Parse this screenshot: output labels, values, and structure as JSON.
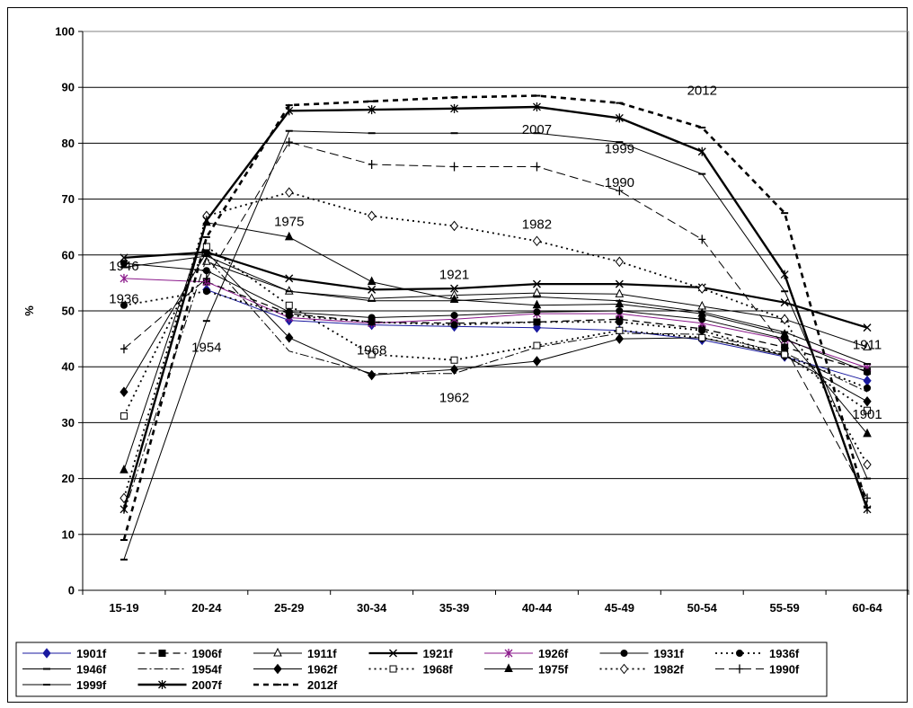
{
  "chart_data": {
    "type": "line",
    "ylabel": "%",
    "xlabel": "",
    "ylim": [
      0,
      100
    ],
    "yticks": [
      0,
      10,
      20,
      30,
      40,
      50,
      60,
      70,
      80,
      90,
      100
    ],
    "categories": [
      "15-19",
      "20-24",
      "25-29",
      "30-34",
      "35-39",
      "40-44",
      "45-49",
      "50-54",
      "55-59",
      "60-64"
    ],
    "grid": "horizontal",
    "legend_position": "bottom",
    "series": [
      {
        "name": "1901f",
        "color": "#1a1aa0",
        "dash": "",
        "width": 1,
        "marker": "diamond",
        "fill": "#1a1aa0",
        "values": [
          null,
          53.8,
          48.3,
          47.5,
          47.2,
          47.0,
          46.5,
          44.8,
          41.8,
          37.5
        ]
      },
      {
        "name": "1906f",
        "color": "#000000",
        "dash": "8 5",
        "width": 1.3,
        "marker": "square",
        "fill": "#000000",
        "values": [
          null,
          55.2,
          49.5,
          48.0,
          47.8,
          48.0,
          48.5,
          46.8,
          43.5,
          39.2
        ]
      },
      {
        "name": "1911f",
        "color": "#000000",
        "dash": "",
        "width": 1,
        "marker": "triangle",
        "fill": "#ffffff",
        "values": [
          null,
          58.8,
          53.5,
          52.2,
          52.8,
          53.2,
          53.0,
          50.8,
          48.5,
          43.5
        ]
      },
      {
        "name": "1921f",
        "color": "#000000",
        "dash": "",
        "width": 2.2,
        "marker": "x",
        "fill": "none",
        "values": [
          59.5,
          60.5,
          55.8,
          53.8,
          54.0,
          54.8,
          54.8,
          54.2,
          51.5,
          47.0
        ]
      },
      {
        "name": "1926f",
        "color": "#8b1a8b",
        "dash": "",
        "width": 1,
        "marker": "star",
        "fill": "none",
        "values": [
          55.8,
          55.2,
          48.8,
          47.8,
          48.5,
          49.5,
          49.5,
          47.8,
          44.8,
          39.8
        ]
      },
      {
        "name": "1931f",
        "color": "#000000",
        "dash": "",
        "width": 1,
        "marker": "circle",
        "fill": "#000000",
        "values": [
          58.5,
          57.2,
          49.8,
          48.8,
          49.2,
          49.8,
          50.0,
          48.5,
          45.0,
          39.0
        ]
      },
      {
        "name": "1936f",
        "color": "#000000",
        "dash": "2 4",
        "width": 1.8,
        "marker": "circle",
        "fill": "#000000",
        "values": [
          51.0,
          53.5,
          49.2,
          48.0,
          47.5,
          48.0,
          48.0,
          46.5,
          42.0,
          36.2
        ]
      },
      {
        "name": "1946f",
        "color": "#000000",
        "dash": "",
        "width": 1,
        "marker": "dash",
        "fill": "none",
        "values": [
          57.8,
          59.8,
          53.5,
          51.8,
          51.8,
          52.5,
          51.8,
          49.8,
          46.2,
          40.5
        ]
      },
      {
        "name": "1954f",
        "color": "#000000",
        "dash": "10 3 2 3",
        "width": 1,
        "marker": "none",
        "fill": "none",
        "values": [
          13.8,
          59.5,
          42.8,
          38.8,
          38.8,
          43.5,
          46.0,
          45.8,
          42.5,
          35.5
        ]
      },
      {
        "name": "1962f",
        "color": "#000000",
        "dash": "",
        "width": 1,
        "marker": "diamond",
        "fill": "#000000",
        "values": [
          35.5,
          60.5,
          45.2,
          38.5,
          39.5,
          41.0,
          45.0,
          45.2,
          42.0,
          33.8
        ]
      },
      {
        "name": "1968f",
        "color": "#000000",
        "dash": "2 4",
        "width": 1.8,
        "marker": "square",
        "fill": "#ffffff",
        "values": [
          31.2,
          61.5,
          51.0,
          42.2,
          41.2,
          43.8,
          46.5,
          45.2,
          42.2,
          32.2
        ]
      },
      {
        "name": "1975f",
        "color": "#000000",
        "dash": "",
        "width": 1,
        "marker": "triangle",
        "fill": "#000000",
        "values": [
          21.5,
          65.8,
          63.2,
          55.2,
          52.0,
          51.0,
          51.2,
          49.5,
          45.8,
          28.0
        ]
      },
      {
        "name": "1982f",
        "color": "#000000",
        "dash": "2 4",
        "width": 1.8,
        "marker": "diamond",
        "fill": "#ffffff",
        "values": [
          16.5,
          67.0,
          71.2,
          67.0,
          65.2,
          62.5,
          58.8,
          54.0,
          48.5,
          22.5
        ]
      },
      {
        "name": "1990f",
        "color": "#000000",
        "dash": "10 5",
        "width": 1,
        "marker": "plus",
        "fill": "none",
        "values": [
          43.2,
          55.8,
          80.2,
          76.2,
          75.8,
          75.8,
          71.5,
          62.8,
          43.5,
          16.5
        ]
      },
      {
        "name": "1999f",
        "color": "#000000",
        "dash": "",
        "width": 1,
        "marker": "dash",
        "fill": "none",
        "values": [
          5.5,
          48.2,
          82.2,
          81.8,
          81.8,
          81.8,
          80.2,
          74.5,
          53.5,
          20.0
        ]
      },
      {
        "name": "2007f",
        "color": "#000000",
        "dash": "",
        "width": 2.4,
        "marker": "star",
        "fill": "none",
        "values": [
          14.5,
          66.2,
          85.8,
          86.0,
          86.2,
          86.5,
          84.5,
          78.5,
          56.5,
          14.5
        ]
      },
      {
        "name": "2012f",
        "color": "#000000",
        "dash": "6 5",
        "width": 2.6,
        "marker": "dash",
        "fill": "none",
        "values": [
          9.0,
          63.2,
          86.8,
          87.5,
          88.2,
          88.5,
          87.2,
          82.8,
          67.5,
          14.8
        ]
      }
    ],
    "annotations": [
      {
        "text": "2012",
        "x": "50-54",
        "y": 89.5
      },
      {
        "text": "2007",
        "x": "40-44",
        "y": 82.5
      },
      {
        "text": "1999",
        "x": "45-49",
        "y": 79.0
      },
      {
        "text": "1990",
        "x": "45-49",
        "y": 73.0
      },
      {
        "text": "1982",
        "x": "40-44",
        "y": 65.5
      },
      {
        "text": "1975",
        "x": "25-29",
        "y": 66.0
      },
      {
        "text": "1946",
        "x": "15-19",
        "y": 58.0
      },
      {
        "text": "1921",
        "x": "35-39",
        "y": 56.5
      },
      {
        "text": "1936",
        "x": "15-19",
        "y": 52.2
      },
      {
        "text": "1954",
        "x": "20-24",
        "y": 43.5
      },
      {
        "text": "1968",
        "x": "30-34",
        "y": 43.0
      },
      {
        "text": "1911",
        "x": "60-64",
        "y": 44.0
      },
      {
        "text": "1962",
        "x": "35-39",
        "y": 34.5
      },
      {
        "text": "1901",
        "x": "60-64",
        "y": 31.5
      }
    ]
  }
}
